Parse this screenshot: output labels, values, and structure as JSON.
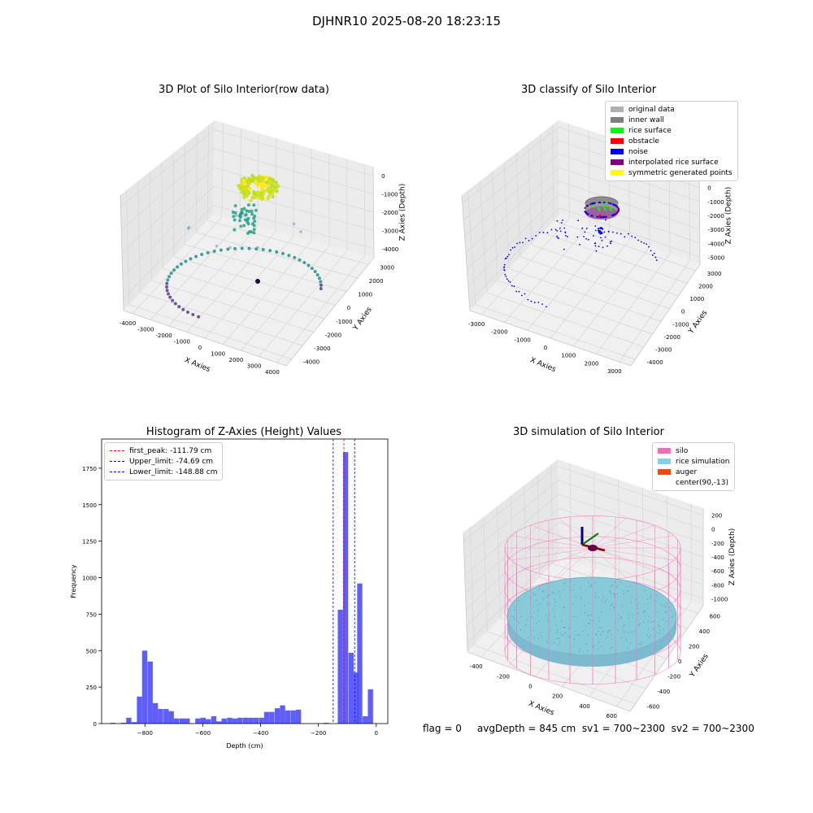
{
  "suptitle": "DJHNR10 2025-08-20 18:23:15",
  "footer": "flag = 0     avgDepth = 845 cm  sv1 = 700~2300  sv2 = 700~2300",
  "chart_data": [
    {
      "type": "scatter",
      "title": "3D Plot of Silo Interior(row data)",
      "xlabel": "X Axies",
      "ylabel": "Y Axies",
      "zlabel": "Z Axies (Depth)",
      "xlim": [
        -4000,
        4000
      ],
      "ylim": [
        -4000,
        4000
      ],
      "zlim": [
        -4500,
        0
      ],
      "xticks": [
        "-4000",
        "-3000",
        "-2000",
        "-1000",
        "0",
        "1000",
        "2000",
        "3000",
        "4000"
      ],
      "yticks": [
        "3000",
        "2000",
        "1000",
        "0",
        "-1000",
        "-2000",
        "-3000",
        "-4000"
      ],
      "zticks": [
        "0",
        "-1000",
        "-2000",
        "-3000",
        "-4000"
      ],
      "colormap": "viridis"
    },
    {
      "type": "scatter",
      "title": "3D classify of Silo Interior",
      "xlabel": "X Axies",
      "ylabel": "Y Axies",
      "zlabel": "Z Axies (Depth)",
      "xticks": [
        "-3000",
        "-2000",
        "-1000",
        "0",
        "1000",
        "2000",
        "3000"
      ],
      "yticks": [
        "3000",
        "2000",
        "1000",
        "0",
        "-1000",
        "-2000",
        "-3000",
        "-4000"
      ],
      "zticks": [
        "1000",
        "0",
        "-1000",
        "-2000",
        "-3000",
        "-4000",
        "-5000"
      ],
      "legend": [
        {
          "label": "original data",
          "color": "#b0b0b0"
        },
        {
          "label": "inner wall",
          "color": "#808080"
        },
        {
          "label": "rice surface",
          "color": "#00ff00"
        },
        {
          "label": "obstacle",
          "color": "#ff0000"
        },
        {
          "label": "noise",
          "color": "#0000ff"
        },
        {
          "label": "interpolated rice surface",
          "color": "#800080"
        },
        {
          "label": "symmetric generated points",
          "color": "#ffff00"
        }
      ],
      "legend_position": "top-right"
    },
    {
      "type": "bar",
      "title": "Histogram of Z-Axies (Height) Values",
      "xlabel": "Depth (cm)",
      "ylabel": "Frequency",
      "xlim": [
        -950,
        40
      ],
      "ylim": [
        0,
        1950
      ],
      "xticks": [
        -800,
        -600,
        -400,
        -200,
        0
      ],
      "yticks": [
        0,
        250,
        500,
        750,
        1000,
        1250,
        1500,
        1750
      ],
      "bin_width": 18.5,
      "bins": [
        {
          "start": -920,
          "count": 5
        },
        {
          "start": -901,
          "count": 0
        },
        {
          "start": -883,
          "count": 5
        },
        {
          "start": -865,
          "count": 40
        },
        {
          "start": -846,
          "count": 10
        },
        {
          "start": -828,
          "count": 185
        },
        {
          "start": -810,
          "count": 500
        },
        {
          "start": -791,
          "count": 425
        },
        {
          "start": -773,
          "count": 140
        },
        {
          "start": -755,
          "count": 100
        },
        {
          "start": -736,
          "count": 100
        },
        {
          "start": -718,
          "count": 85
        },
        {
          "start": -700,
          "count": 35
        },
        {
          "start": -681,
          "count": 35
        },
        {
          "start": -663,
          "count": 35
        },
        {
          "start": -645,
          "count": 0
        },
        {
          "start": -626,
          "count": 35
        },
        {
          "start": -608,
          "count": 40
        },
        {
          "start": -590,
          "count": 30
        },
        {
          "start": -571,
          "count": 50
        },
        {
          "start": -553,
          "count": 15
        },
        {
          "start": -535,
          "count": 35
        },
        {
          "start": -516,
          "count": 40
        },
        {
          "start": -498,
          "count": 35
        },
        {
          "start": -480,
          "count": 40
        },
        {
          "start": -461,
          "count": 40
        },
        {
          "start": -443,
          "count": 40
        },
        {
          "start": -425,
          "count": 40
        },
        {
          "start": -406,
          "count": 40
        },
        {
          "start": -388,
          "count": 80
        },
        {
          "start": -370,
          "count": 80
        },
        {
          "start": -351,
          "count": 105
        },
        {
          "start": -333,
          "count": 125
        },
        {
          "start": -315,
          "count": 90
        },
        {
          "start": -296,
          "count": 90
        },
        {
          "start": -278,
          "count": 95
        },
        {
          "start": -182,
          "count": 5
        },
        {
          "start": -133,
          "count": 780
        },
        {
          "start": -115,
          "count": 1860
        },
        {
          "start": -96,
          "count": 485
        },
        {
          "start": -78,
          "count": 350
        },
        {
          "start": -66,
          "count": 960
        },
        {
          "start": -47,
          "count": 50
        },
        {
          "start": -29,
          "count": 235
        }
      ],
      "vlines": [
        {
          "label": "first_peak: -111.79 cm",
          "x": -111.79,
          "color": "#ff0000"
        },
        {
          "label": "Upper_limit: -74.69 cm",
          "x": -74.69,
          "color": "#0000ff"
        },
        {
          "label": "Lower_limit: -148.88 cm",
          "x": -148.88,
          "color": "#0000ff"
        }
      ],
      "legend_position": "top-left"
    },
    {
      "type": "surface",
      "title": "3D simulation of Silo Interior",
      "xlabel": "X Axies",
      "ylabel": "Y Axies",
      "zlabel": "Z Axies (Depth)",
      "xticks": [
        "-400",
        "-200",
        "0",
        "200",
        "400",
        "600"
      ],
      "yticks": [
        "600",
        "400",
        "200",
        "0",
        "-200",
        "-400",
        "-600"
      ],
      "zticks": [
        "200",
        "0",
        "-200",
        "-400",
        "-600",
        "-800",
        "-1000"
      ],
      "legend": [
        {
          "label": "silo",
          "color": "#ff69b4"
        },
        {
          "label": "rice simulation",
          "color": "#87ceeb"
        },
        {
          "label": "auger",
          "color": "#ff4500"
        },
        {
          "label": "center(90,-13)",
          "color": "#ffffff"
        }
      ],
      "legend_position": "top-right"
    }
  ]
}
